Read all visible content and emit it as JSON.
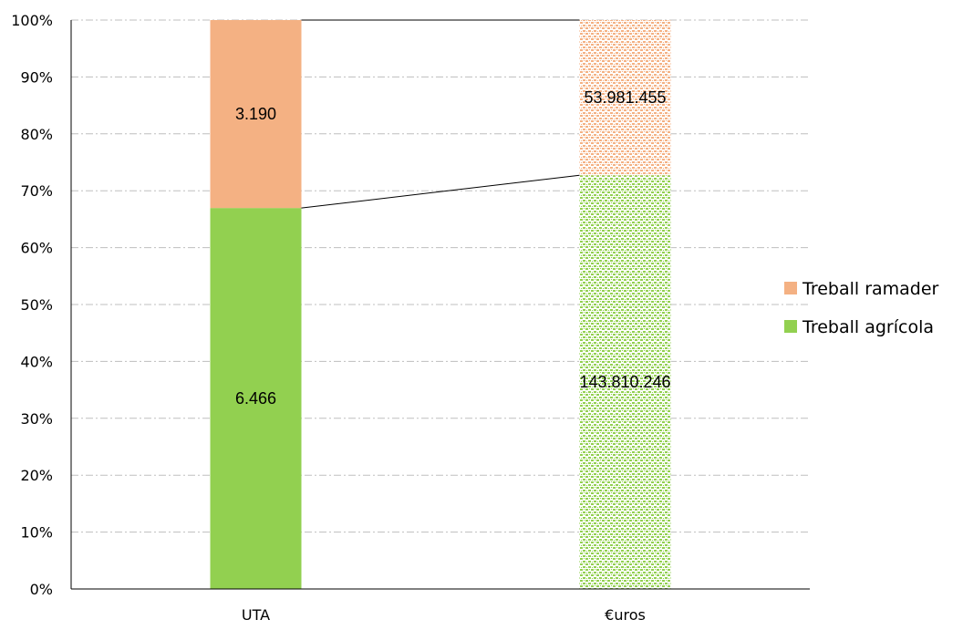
{
  "chart_data": {
    "type": "bar",
    "stacked": "percent",
    "categories": [
      "UTA",
      "€uros"
    ],
    "series": [
      {
        "name": "Treball agrícola",
        "values": [
          6466,
          143810246
        ],
        "labels": [
          "6.466",
          "143.810.246"
        ],
        "color": "#92d050"
      },
      {
        "name": "Treball ramader",
        "values": [
          3190,
          53981455
        ],
        "labels": [
          "3.190",
          "53.981.455"
        ],
        "color": "#f4b183"
      }
    ],
    "patterned_categories": [
      "€uros"
    ],
    "title": "",
    "xlabel": "",
    "ylabel": "",
    "ylim": [
      0,
      100
    ],
    "yticks": [
      "0%",
      "10%",
      "20%",
      "30%",
      "40%",
      "50%",
      "60%",
      "70%",
      "80%",
      "90%",
      "100%"
    ],
    "grid": true,
    "legend_position": "right",
    "series_lines": true
  }
}
